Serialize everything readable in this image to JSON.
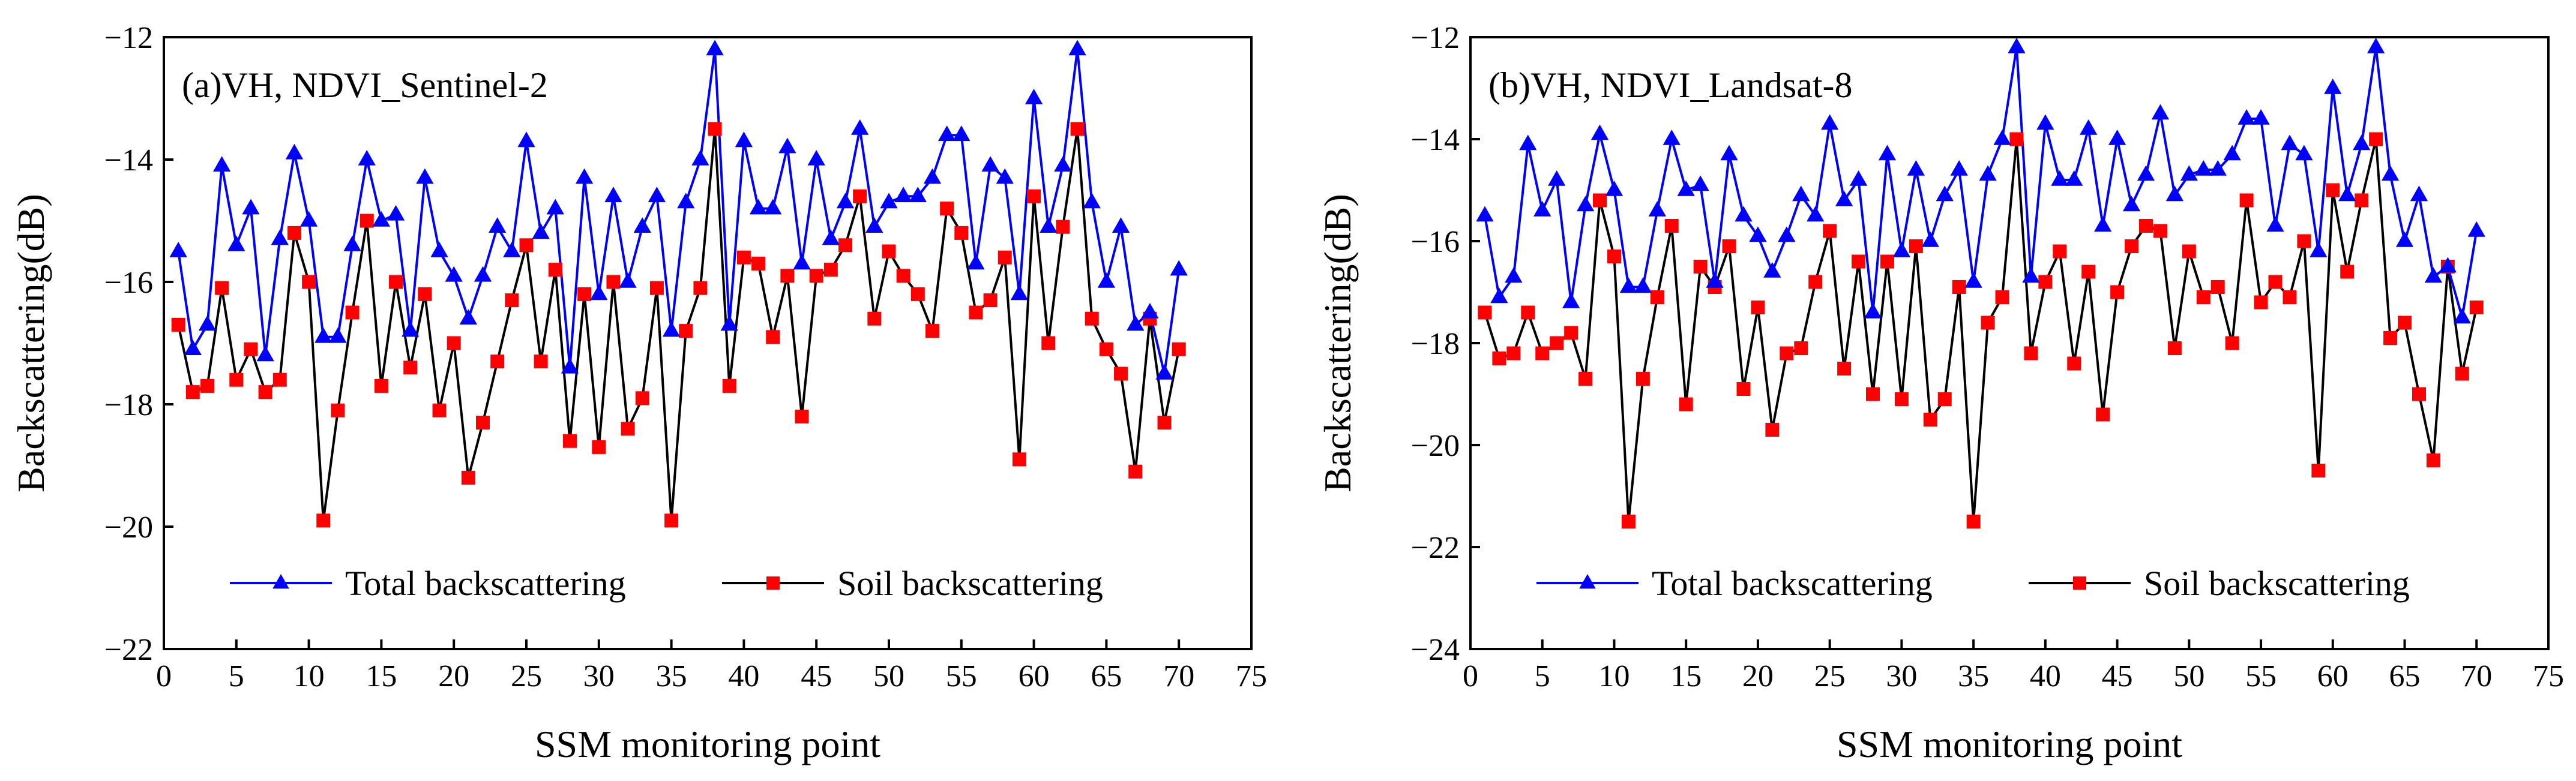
{
  "figure": {
    "total_color": "#0000ff",
    "soil_color": "#000000",
    "soil_marker_color": "#ff0000"
  },
  "chart_data": [
    {
      "type": "line",
      "panel_label": "(a)VH, NDVI_Sentinel-2",
      "xlabel": "SSM monitoring point",
      "ylabel": "Backscattering(dB)",
      "xlim": [
        0,
        75
      ],
      "ylim": [
        -22,
        -12
      ],
      "xticks": [
        0,
        5,
        10,
        15,
        20,
        25,
        30,
        35,
        40,
        45,
        50,
        55,
        60,
        65,
        70,
        75
      ],
      "yticks": [
        -22,
        -20,
        -18,
        -16,
        -14,
        -12
      ],
      "legend_position": "bottom-center",
      "x": [
        1,
        2,
        3,
        4,
        5,
        6,
        7,
        8,
        9,
        10,
        11,
        12,
        13,
        14,
        15,
        16,
        17,
        18,
        19,
        20,
        21,
        22,
        23,
        24,
        25,
        26,
        27,
        28,
        29,
        30,
        31,
        32,
        33,
        34,
        35,
        36,
        37,
        38,
        39,
        40,
        41,
        42,
        43,
        44,
        45,
        46,
        47,
        48,
        49,
        50,
        51,
        52,
        53,
        54,
        55,
        56,
        57,
        58,
        59,
        60,
        61,
        62,
        63,
        64,
        65,
        66,
        67,
        68,
        69,
        70
      ],
      "series": [
        {
          "name": "Total backscattering",
          "values": [
            -15.5,
            -17.1,
            -16.7,
            -14.1,
            -15.4,
            -14.8,
            -17.2,
            -15.3,
            -13.9,
            -15.0,
            -16.9,
            -16.9,
            -15.4,
            -14.0,
            -15.0,
            -14.9,
            -16.8,
            -14.3,
            -15.5,
            -15.9,
            -16.6,
            -15.9,
            -15.1,
            -15.5,
            -13.7,
            -15.2,
            -14.8,
            -17.4,
            -14.3,
            -16.2,
            -14.6,
            -16.0,
            -15.1,
            -14.6,
            -16.8,
            -14.7,
            -14.0,
            -12.2,
            -16.7,
            -13.7,
            -14.8,
            -14.8,
            -13.8,
            -15.7,
            -14.0,
            -15.3,
            -14.7,
            -13.5,
            -15.1,
            -14.7,
            -14.6,
            -14.6,
            -14.3,
            -13.6,
            -13.6,
            -15.7,
            -14.1,
            -14.3,
            -16.2,
            -13.0,
            -15.1,
            -14.1,
            -12.2,
            -14.7,
            -16.0,
            -15.1,
            -16.7,
            -16.5,
            -17.5,
            -15.8
          ]
        },
        {
          "name": "Soil backscattering",
          "values": [
            -16.7,
            -17.8,
            -17.7,
            -16.1,
            -17.6,
            -17.1,
            -17.8,
            -17.6,
            -15.2,
            -16.0,
            -19.9,
            -18.1,
            -16.5,
            -15.0,
            -17.7,
            -16.0,
            -17.4,
            -16.2,
            -18.1,
            -17.0,
            -19.2,
            -18.3,
            -17.3,
            -16.3,
            -15.4,
            -17.3,
            -15.8,
            -18.6,
            -16.2,
            -18.7,
            -16.0,
            -18.4,
            -17.9,
            -16.1,
            -19.9,
            -16.8,
            -16.1,
            -13.5,
            -17.7,
            -15.6,
            -15.7,
            -16.9,
            -15.9,
            -18.2,
            -15.9,
            -15.8,
            -15.4,
            -14.6,
            -16.6,
            -15.5,
            -15.9,
            -16.2,
            -16.8,
            -14.8,
            -15.2,
            -16.5,
            -16.3,
            -15.6,
            -18.9,
            -14.6,
            -17.0,
            -15.1,
            -13.5,
            -16.6,
            -17.1,
            -17.5,
            -19.1,
            -16.6,
            -18.3,
            -17.1
          ]
        }
      ]
    },
    {
      "type": "line",
      "panel_label": "(b)VH, NDVI_Landsat-8",
      "xlabel": "SSM monitoring point",
      "ylabel": "Backscattering(dB)",
      "xlim": [
        0,
        75
      ],
      "ylim": [
        -24,
        -12
      ],
      "xticks": [
        0,
        5,
        10,
        15,
        20,
        25,
        30,
        35,
        40,
        45,
        50,
        55,
        60,
        65,
        70,
        75
      ],
      "yticks": [
        -24,
        -22,
        -20,
        -18,
        -16,
        -14,
        -12
      ],
      "legend_position": "bottom-center",
      "x": [
        1,
        2,
        3,
        4,
        5,
        6,
        7,
        8,
        9,
        10,
        11,
        12,
        13,
        14,
        15,
        16,
        17,
        18,
        19,
        20,
        21,
        22,
        23,
        24,
        25,
        26,
        27,
        28,
        29,
        30,
        31,
        32,
        33,
        34,
        35,
        36,
        37,
        38,
        39,
        40,
        41,
        42,
        43,
        44,
        45,
        46,
        47,
        48,
        49,
        50,
        51,
        52,
        53,
        54,
        55,
        56,
        57,
        58,
        59,
        60,
        61,
        62,
        63,
        64,
        65,
        66,
        67,
        68,
        69,
        70
      ],
      "series": [
        {
          "name": "Total backscattering",
          "values": [
            -15.5,
            -17.1,
            -16.7,
            -14.1,
            -15.4,
            -14.8,
            -17.2,
            -15.3,
            -13.9,
            -15.0,
            -16.9,
            -16.9,
            -15.4,
            -14.0,
            -15.0,
            -14.9,
            -16.8,
            -14.3,
            -15.5,
            -15.9,
            -16.6,
            -15.9,
            -15.1,
            -15.5,
            -13.7,
            -15.2,
            -14.8,
            -17.4,
            -14.3,
            -16.2,
            -14.6,
            -16.0,
            -15.1,
            -14.6,
            -16.8,
            -14.7,
            -14.0,
            -12.2,
            -16.7,
            -13.7,
            -14.8,
            -14.8,
            -13.8,
            -15.7,
            -14.0,
            -15.3,
            -14.7,
            -13.5,
            -15.1,
            -14.7,
            -14.6,
            -14.6,
            -14.3,
            -13.6,
            -13.6,
            -15.7,
            -14.1,
            -14.3,
            -16.2,
            -13.0,
            -15.1,
            -14.1,
            -12.2,
            -14.7,
            -16.0,
            -15.1,
            -16.7,
            -16.5,
            -17.5,
            -15.8
          ]
        },
        {
          "name": "Soil backscattering",
          "values": [
            -17.4,
            -18.3,
            -18.2,
            -17.4,
            -18.2,
            -18.0,
            -17.8,
            -18.7,
            -15.2,
            -16.3,
            -21.5,
            -18.7,
            -17.1,
            -15.7,
            -19.2,
            -16.5,
            -16.9,
            -16.1,
            -18.9,
            -17.3,
            -19.7,
            -18.2,
            -18.1,
            -16.8,
            -15.8,
            -18.5,
            -16.4,
            -19.0,
            -16.4,
            -19.1,
            -16.1,
            -19.5,
            -19.1,
            -16.9,
            -21.5,
            -17.6,
            -17.1,
            -14.0,
            -18.2,
            -16.8,
            -16.2,
            -18.4,
            -16.6,
            -19.4,
            -17.0,
            -16.1,
            -15.7,
            -15.8,
            -18.1,
            -16.2,
            -17.1,
            -16.9,
            -18.0,
            -15.2,
            -17.2,
            -16.8,
            -17.1,
            -16.0,
            -20.5,
            -15.0,
            -16.6,
            -15.2,
            -14.0,
            -17.9,
            -17.6,
            -19.0,
            -20.3,
            -16.5,
            -18.6,
            -17.3
          ]
        }
      ]
    }
  ]
}
